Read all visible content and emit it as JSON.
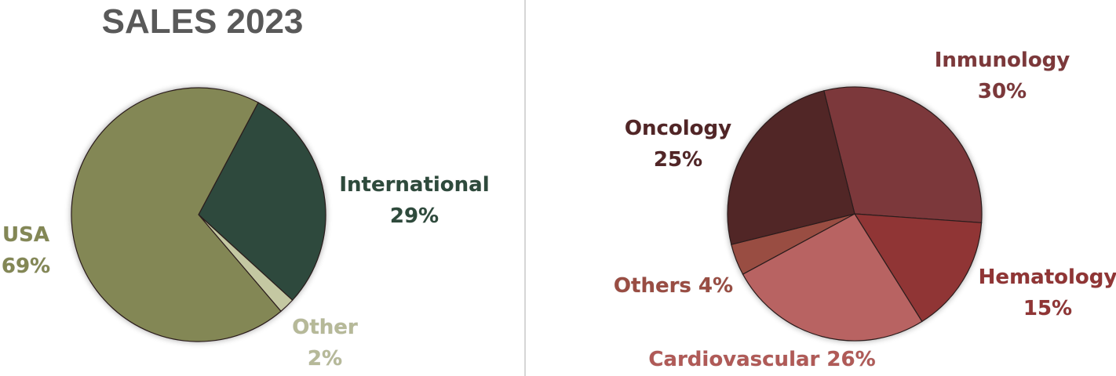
{
  "title": "SALES 2023",
  "chart_data": [
    {
      "type": "pie",
      "title": "SALES 2023",
      "slices": [
        {
          "name": "International",
          "value": 29,
          "label_line1": "International",
          "label_line2": "29%",
          "color": "#2e4a3c",
          "label_color": "#2e4a3c"
        },
        {
          "name": "Other",
          "value": 2,
          "label_line1": "Other",
          "label_line2": "2%",
          "color": "#c4c8a2",
          "label_color": "#b6b998"
        },
        {
          "name": "USA",
          "value": 69,
          "label_line1": "USA",
          "label_line2": "69%",
          "color": "#838755",
          "label_color": "#838755"
        }
      ]
    },
    {
      "type": "pie",
      "title": "",
      "slices": [
        {
          "name": "Inmunology",
          "value": 30,
          "label_line1": "Inmunology",
          "label_line2": "30%",
          "color": "#7c383a",
          "label_color": "#7c383a"
        },
        {
          "name": "Hematology",
          "value": 15,
          "label_line1": "Hematology",
          "label_line2": "15%",
          "color": "#903535",
          "label_color": "#903535"
        },
        {
          "name": "Cardiovascular",
          "value": 26,
          "label_line1": "Cardiovascular 26%",
          "label_line2": "",
          "color": "#b86462",
          "label_color": "#b05a57"
        },
        {
          "name": "Others",
          "value": 4,
          "label_line1": "Others 4%",
          "label_line2": "",
          "color": "#994d43",
          "label_color": "#994d43"
        },
        {
          "name": "Oncology",
          "value": 25,
          "label_line1": "Oncology",
          "label_line2": "25%",
          "color": "#512526",
          "label_color": "#512526"
        }
      ]
    }
  ]
}
